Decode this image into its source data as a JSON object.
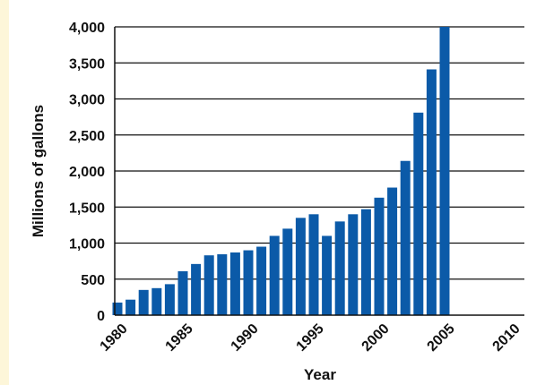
{
  "chart_data": {
    "type": "bar",
    "xlabel": "Year",
    "ylabel": "Millions of gallons",
    "ylim": [
      0,
      4000
    ],
    "xlim": [
      1980,
      2010
    ],
    "x_ticks": [
      "1980",
      "1985",
      "1990",
      "1995",
      "2000",
      "2005",
      "2010"
    ],
    "y_ticks": [
      "0",
      "500",
      "1,000",
      "1,500",
      "2,000",
      "2,500",
      "3,000",
      "3,500",
      "4,000"
    ],
    "bar_color": "#0b5aa8",
    "grid": "horizontal",
    "series": [
      {
        "x": [
          1980,
          1981,
          1982,
          1983,
          1984,
          1985,
          1986,
          1987,
          1988,
          1989,
          1990,
          1991,
          1992,
          1993,
          1994,
          1995,
          1996,
          1997,
          1998,
          1999,
          2000,
          2001,
          2002,
          2003,
          2004,
          2005
        ],
        "values": [
          175,
          215,
          350,
          375,
          430,
          610,
          710,
          830,
          845,
          870,
          900,
          950,
          1100,
          1200,
          1350,
          1400,
          1100,
          1300,
          1400,
          1470,
          1630,
          1770,
          2140,
          2810,
          3410,
          4000
        ]
      }
    ]
  }
}
